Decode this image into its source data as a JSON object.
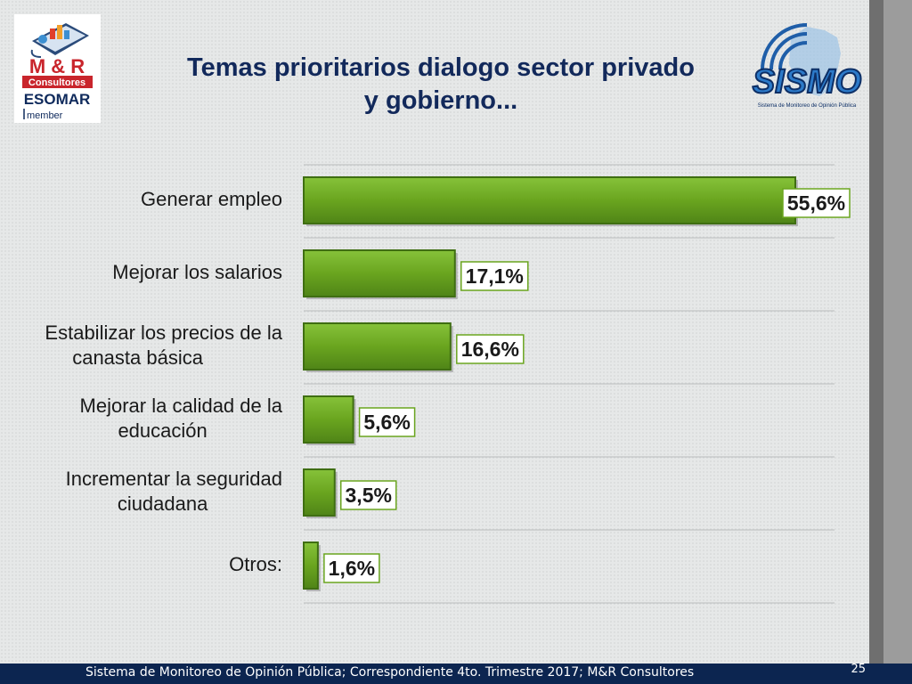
{
  "title_line1": "Temas prioritarios dialogo sector privado",
  "title_line2": "y gobierno...",
  "logo_left": {
    "line1": "M & R",
    "line2": "Consultores",
    "line3": "ESOMAR",
    "line4": "member"
  },
  "logo_right": {
    "text": "SISMO",
    "subtitle": "Sistema de Monitoreo de Opinión Pública"
  },
  "footer": {
    "text": "Sistema de Monitoreo de Opinión Pública; Correspondiente 4to. Trimestre 2017; M&R Consultores",
    "page": "25"
  },
  "colors": {
    "bar": "#6aa51f",
    "bar_dark": "#3f6e12",
    "title": "#12295b",
    "footer_bg": "#0c2550"
  },
  "chart_data": {
    "type": "bar",
    "orientation": "horizontal",
    "categories": [
      [
        "Generar empleo"
      ],
      [
        "Mejorar los salarios"
      ],
      [
        "Estabilizar los precios de la",
        "canasta básica"
      ],
      [
        "Mejorar la calidad de la",
        "educación"
      ],
      [
        "Incrementar la seguridad",
        "ciudadana"
      ],
      [
        "Otros:"
      ]
    ],
    "values": [
      55.6,
      17.1,
      16.6,
      5.6,
      3.5,
      1.6
    ],
    "labels": [
      "55,6%",
      "17,1%",
      "16,6%",
      "5,6%",
      "3,5%",
      "1,6%"
    ],
    "xlim": [
      0,
      55.6
    ],
    "grid": true
  }
}
